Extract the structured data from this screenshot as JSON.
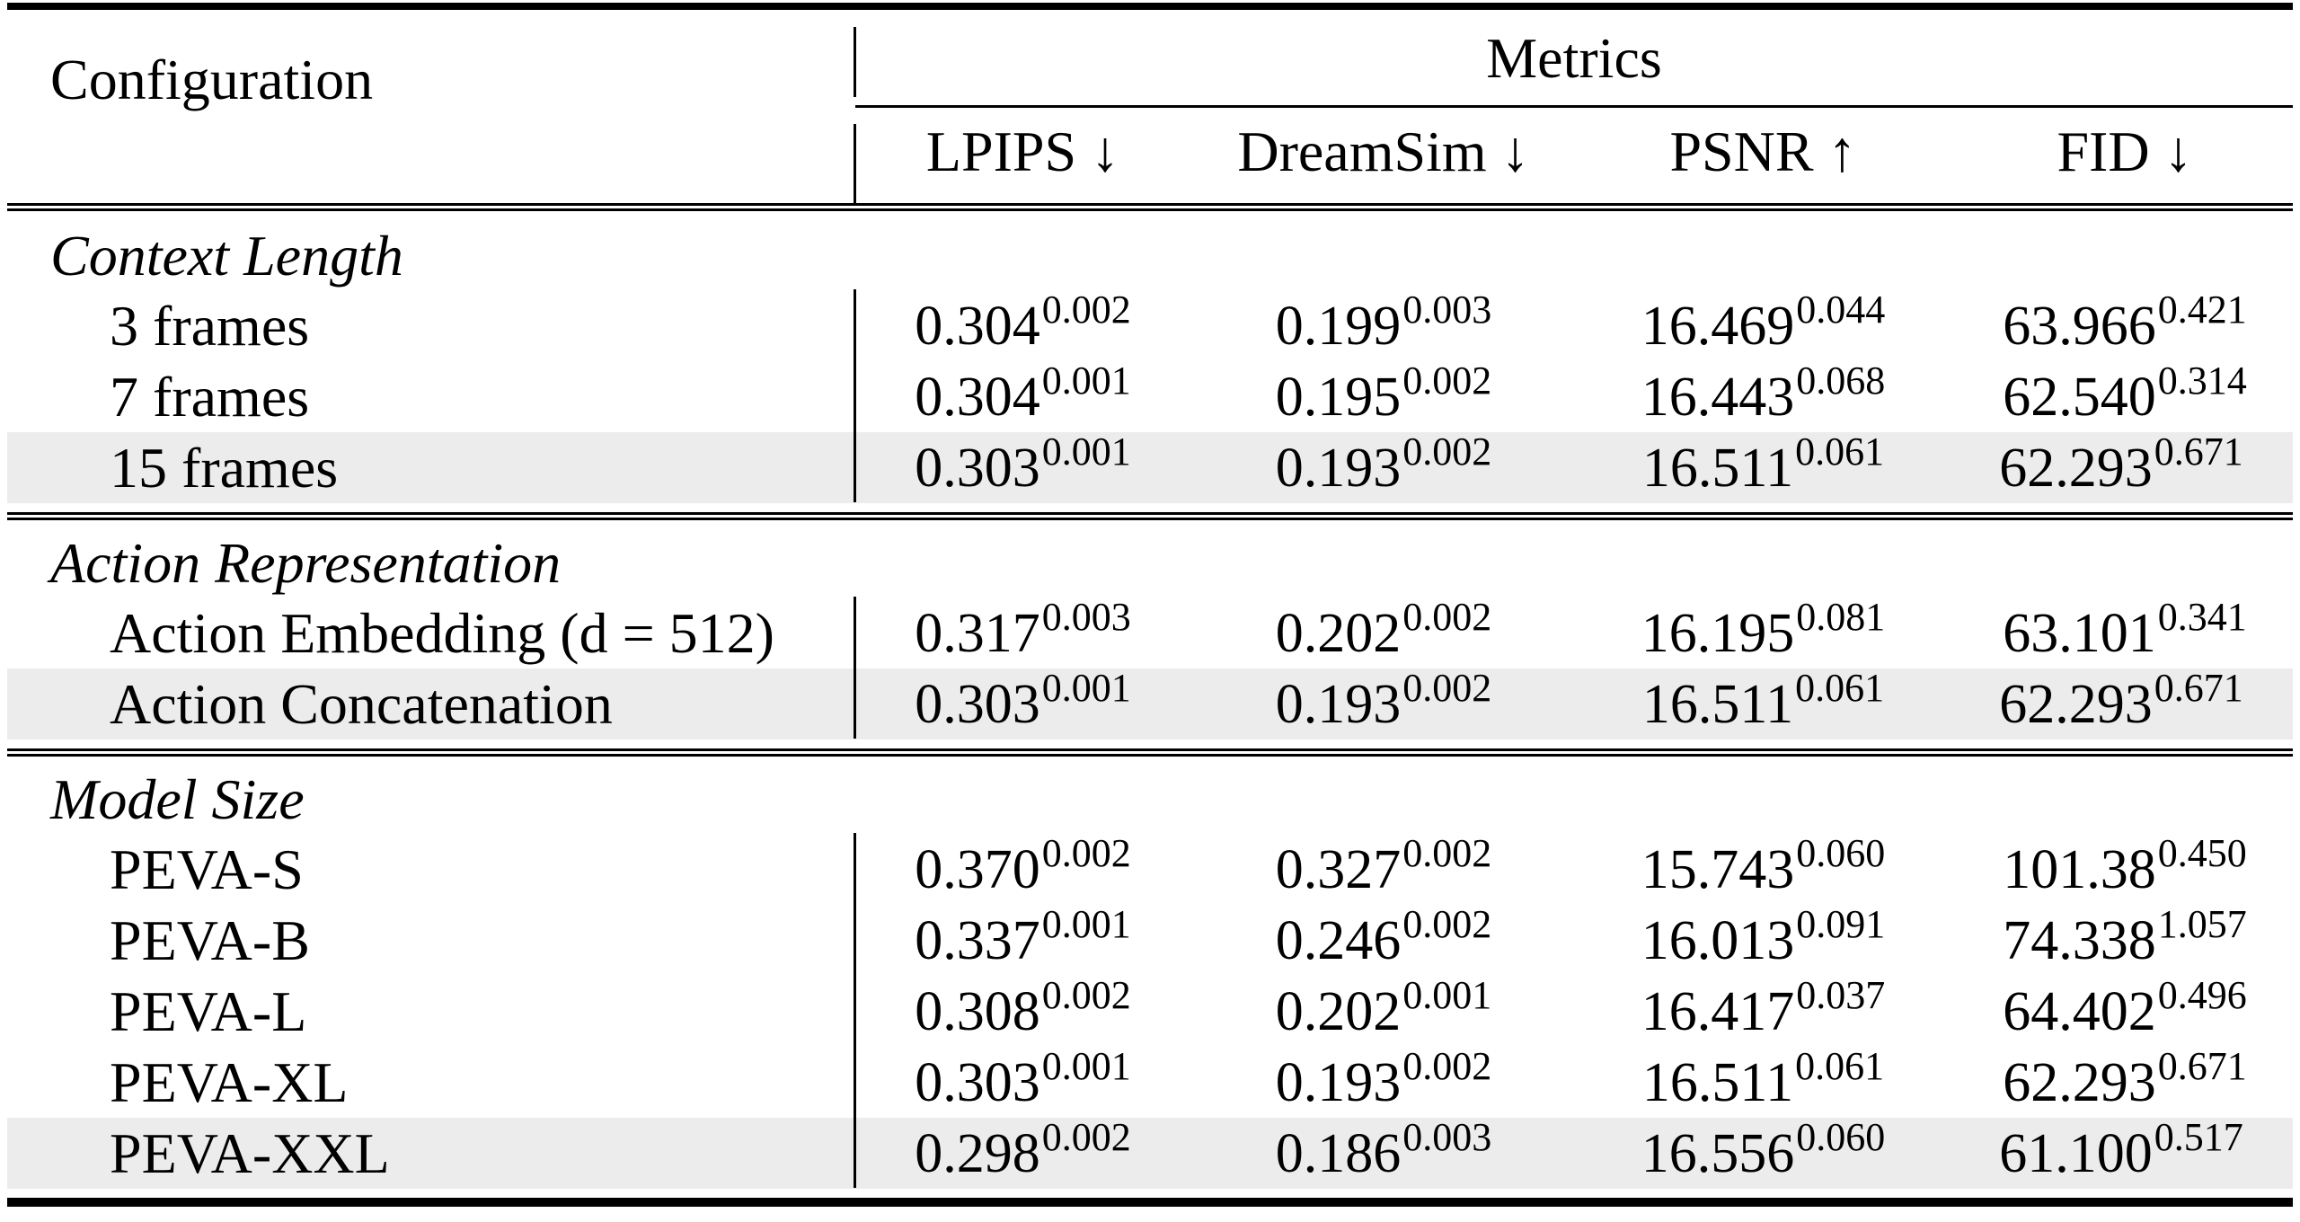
{
  "table": {
    "header": {
      "config_label": "Configuration",
      "metrics_label": "Metrics",
      "columns": [
        "LPIPS ↓",
        "DreamSim ↓",
        "PSNR ↑",
        "FID ↓"
      ]
    },
    "highlight_color": "#ececec",
    "sections": [
      {
        "title": "Context Length",
        "rows": [
          {
            "label": "3 frames",
            "highlight": false,
            "values": [
              {
                "m": "0.304",
                "s": "0.002"
              },
              {
                "m": "0.199",
                "s": "0.003"
              },
              {
                "m": "16.469",
                "s": "0.044"
              },
              {
                "m": "63.966",
                "s": "0.421"
              }
            ]
          },
          {
            "label": "7 frames",
            "highlight": false,
            "values": [
              {
                "m": "0.304",
                "s": "0.001"
              },
              {
                "m": "0.195",
                "s": "0.002"
              },
              {
                "m": "16.443",
                "s": "0.068"
              },
              {
                "m": "62.540",
                "s": "0.314"
              }
            ]
          },
          {
            "label": "15 frames",
            "highlight": true,
            "values": [
              {
                "m": "0.303",
                "s": "0.001"
              },
              {
                "m": "0.193",
                "s": "0.002"
              },
              {
                "m": "16.511",
                "s": "0.061"
              },
              {
                "m": "62.293",
                "s": "0.671"
              }
            ]
          }
        ]
      },
      {
        "title": "Action Representation",
        "rows": [
          {
            "label": "Action Embedding (d = 512)",
            "highlight": false,
            "values": [
              {
                "m": "0.317",
                "s": "0.003"
              },
              {
                "m": "0.202",
                "s": "0.002"
              },
              {
                "m": "16.195",
                "s": "0.081"
              },
              {
                "m": "63.101",
                "s": "0.341"
              }
            ]
          },
          {
            "label": "Action Concatenation",
            "highlight": true,
            "values": [
              {
                "m": "0.303",
                "s": "0.001"
              },
              {
                "m": "0.193",
                "s": "0.002"
              },
              {
                "m": "16.511",
                "s": "0.061"
              },
              {
                "m": "62.293",
                "s": "0.671"
              }
            ]
          }
        ]
      },
      {
        "title": "Model Size",
        "rows": [
          {
            "label": "PEVA-S",
            "highlight": false,
            "values": [
              {
                "m": "0.370",
                "s": "0.002"
              },
              {
                "m": "0.327",
                "s": "0.002"
              },
              {
                "m": "15.743",
                "s": "0.060"
              },
              {
                "m": "101.38",
                "s": "0.450"
              }
            ]
          },
          {
            "label": "PEVA-B",
            "highlight": false,
            "values": [
              {
                "m": "0.337",
                "s": "0.001"
              },
              {
                "m": "0.246",
                "s": "0.002"
              },
              {
                "m": "16.013",
                "s": "0.091"
              },
              {
                "m": "74.338",
                "s": "1.057"
              }
            ]
          },
          {
            "label": "PEVA-L",
            "highlight": false,
            "values": [
              {
                "m": "0.308",
                "s": "0.002"
              },
              {
                "m": "0.202",
                "s": "0.001"
              },
              {
                "m": "16.417",
                "s": "0.037"
              },
              {
                "m": "64.402",
                "s": "0.496"
              }
            ]
          },
          {
            "label": "PEVA-XL",
            "highlight": false,
            "values": [
              {
                "m": "0.303",
                "s": "0.001"
              },
              {
                "m": "0.193",
                "s": "0.002"
              },
              {
                "m": "16.511",
                "s": "0.061"
              },
              {
                "m": "62.293",
                "s": "0.671"
              }
            ]
          },
          {
            "label": "PEVA-XXL",
            "highlight": true,
            "values": [
              {
                "m": "0.298",
                "s": "0.002"
              },
              {
                "m": "0.186",
                "s": "0.003"
              },
              {
                "m": "16.556",
                "s": "0.060"
              },
              {
                "m": "61.100",
                "s": "0.517"
              }
            ]
          }
        ]
      }
    ]
  }
}
